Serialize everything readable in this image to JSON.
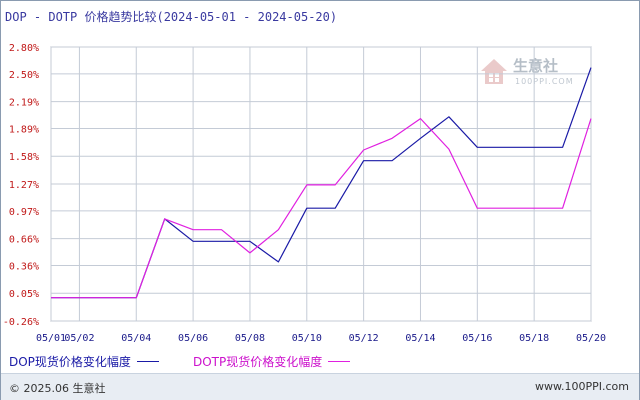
{
  "chart_data": {
    "type": "line",
    "title": "DOP - DOTP 价格趋势比较(2024-05-01 - 2024-05-20)",
    "x": [
      "05/01",
      "05/02",
      "05/03",
      "05/04",
      "05/05",
      "05/06",
      "05/07",
      "05/08",
      "05/09",
      "05/10",
      "05/11",
      "05/12",
      "05/13",
      "05/14",
      "05/15",
      "05/16",
      "05/17",
      "05/18",
      "05/19",
      "05/20"
    ],
    "x_tick_labels": [
      "05/01",
      "05/02",
      "05/04",
      "05/06",
      "05/08",
      "05/10",
      "05/12",
      "05/14",
      "05/16",
      "05/18",
      "05/20"
    ],
    "x_tick_indices": [
      0,
      1,
      3,
      5,
      7,
      9,
      11,
      13,
      15,
      17,
      19
    ],
    "y_tick_labels": [
      "2.80%",
      "2.50%",
      "2.19%",
      "1.89%",
      "1.58%",
      "1.27%",
      "0.97%",
      "0.66%",
      "0.36%",
      "0.05%",
      "-0.26%"
    ],
    "y_tick_values": [
      2.8,
      2.5,
      2.19,
      1.89,
      1.58,
      1.27,
      0.97,
      0.66,
      0.36,
      0.05,
      -0.26
    ],
    "ylim": [
      -0.26,
      2.8
    ],
    "grid": true,
    "series": [
      {
        "name": "DOP现货价格变化幅度",
        "color": "#1a1aa6",
        "values": [
          0,
          0,
          0,
          0,
          0.88,
          0.63,
          0.63,
          0.63,
          0.4,
          1.0,
          1.0,
          1.53,
          1.53,
          1.78,
          2.02,
          1.68,
          1.68,
          1.68,
          1.68,
          2.57
        ]
      },
      {
        "name": "DOTP现货价格变化幅度",
        "color": "#e020e0",
        "values": [
          0,
          0,
          0,
          0,
          0.88,
          0.76,
          0.76,
          0.5,
          0.76,
          1.26,
          1.26,
          1.65,
          1.78,
          2.0,
          1.66,
          1.0,
          1.0,
          1.0,
          1.0,
          2.0
        ]
      }
    ]
  },
  "legend": [
    {
      "label": "DOP现货价格变化幅度",
      "color": "#1a1aa6"
    },
    {
      "label": "DOTP现货价格变化幅度",
      "color": "#e020e0"
    }
  ],
  "footer": {
    "copyright": "© 2025.06 生意社",
    "site": "www.100PPI.com"
  },
  "watermark": {
    "brand": "生意社",
    "url": "100PPI.COM"
  }
}
